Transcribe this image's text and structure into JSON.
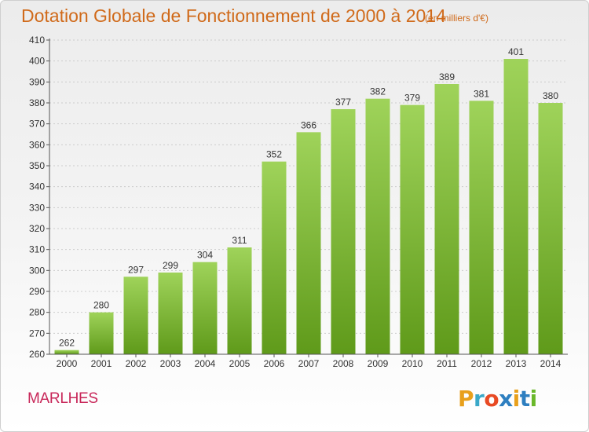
{
  "title": "Dotation Globale de Fonctionnement de 2000 à 2014",
  "unit_note": "(en milliers d'€)",
  "commune": "MARLHES",
  "logo": {
    "text": "Proxiti",
    "colors": [
      "#e8a01c",
      "#3aa8c8",
      "#e84a24",
      "#2e7fc0",
      "#e8a01c",
      "#2e7fc0",
      "#6ab82a"
    ]
  },
  "colors": {
    "bar_top": "#9fd35a",
    "bar_bottom": "#5f9a1a",
    "title": "#d06a1a",
    "commune": "#c8285a",
    "grid": "#cccccc"
  },
  "chart_data": {
    "type": "bar",
    "categories": [
      "2000",
      "2001",
      "2002",
      "2003",
      "2004",
      "2005",
      "2006",
      "2007",
      "2008",
      "2009",
      "2010",
      "2011",
      "2012",
      "2013",
      "2014"
    ],
    "values": [
      262,
      280,
      297,
      299,
      304,
      311,
      352,
      366,
      377,
      382,
      379,
      389,
      381,
      401,
      380
    ],
    "title": "Dotation Globale de Fonctionnement de 2000 à 2014",
    "ylim": [
      260,
      410
    ],
    "yticks": [
      260,
      270,
      280,
      290,
      300,
      310,
      320,
      330,
      340,
      350,
      360,
      370,
      380,
      390,
      400,
      410
    ],
    "grid": true,
    "data_labels": true
  }
}
